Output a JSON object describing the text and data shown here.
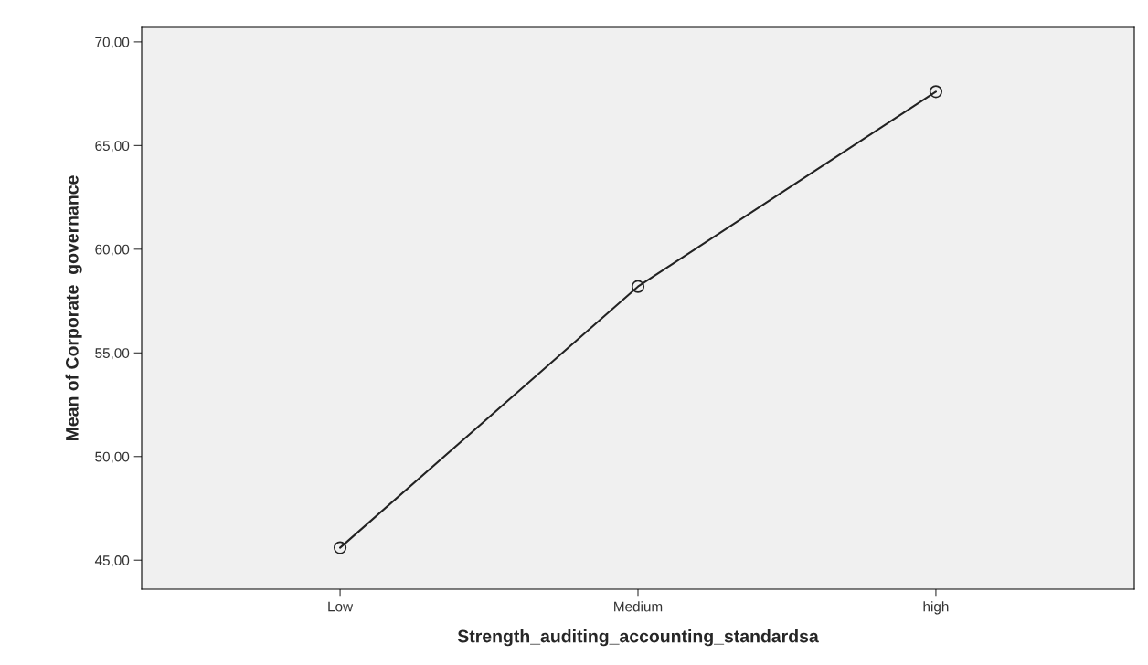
{
  "chart_data": {
    "type": "line",
    "xlabel": "Strength_auditing_accounting_standardsa",
    "ylabel": "Mean of Corporate_governance",
    "categories": [
      "Low",
      "Medium",
      "high"
    ],
    "series": [
      {
        "color": "#222222",
        "values": [
          45.6,
          58.2,
          67.6
        ]
      }
    ],
    "ylim": [
      43.6,
      70.7
    ],
    "yticks": [
      {
        "value": 45,
        "label": "45,00"
      },
      {
        "value": 50,
        "label": "50,00"
      },
      {
        "value": 55,
        "label": "55,00"
      },
      {
        "value": 60,
        "label": "60,00"
      },
      {
        "value": 65,
        "label": "65,00"
      },
      {
        "value": 70,
        "label": "70,00"
      }
    ],
    "marker": "circle",
    "line_style": "solid",
    "grid": false
  }
}
